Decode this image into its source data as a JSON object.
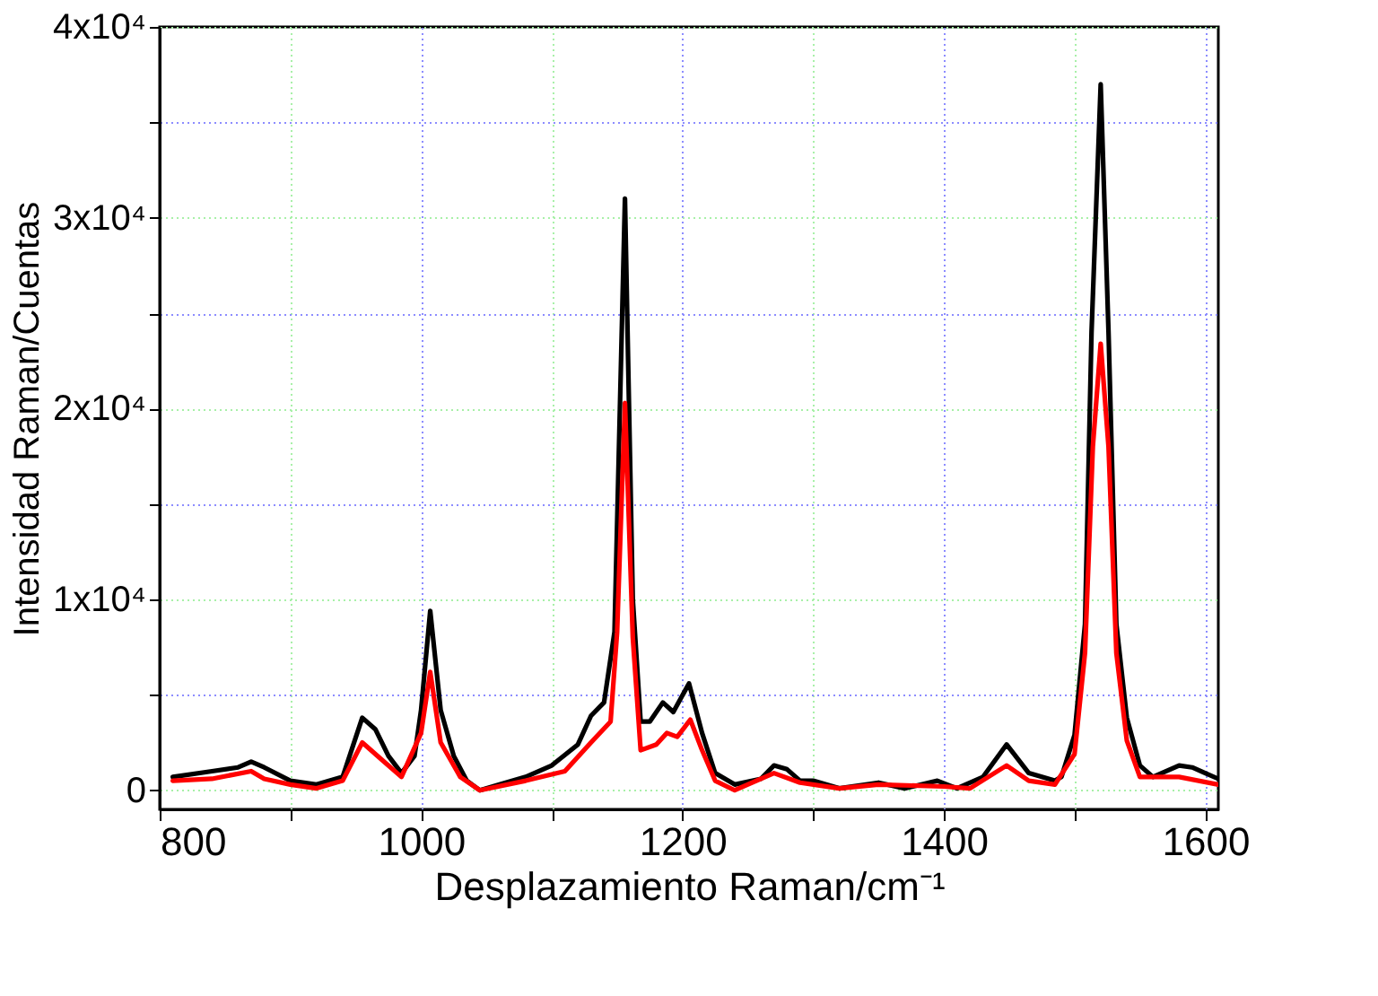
{
  "chart_data": {
    "type": "line",
    "xlabel": "Desplazamiento Raman/cm⁻¹",
    "ylabel": "Intensidad Raman/Cuentas",
    "xlim": [
      800,
      1610
    ],
    "ylim": [
      -1000,
      40000
    ],
    "xticks": [
      800,
      {
        "value": 900,
        "label": null
      },
      1000,
      {
        "value": 1100,
        "label": null
      },
      1200,
      {
        "value": 1300,
        "label": null
      },
      1400,
      {
        "value": 1500,
        "label": null
      },
      1600
    ],
    "yticks": [
      0,
      {
        "value": 5000,
        "label": null
      },
      {
        "value": 10000,
        "label": "1x10⁴"
      },
      {
        "value": 15000,
        "label": null
      },
      {
        "value": 20000,
        "label": "2x10⁴"
      },
      {
        "value": 25000,
        "label": null
      },
      {
        "value": 30000,
        "label": "3x10⁴"
      },
      {
        "value": 35000,
        "label": null
      },
      {
        "value": 40000,
        "label": "4x10⁴"
      }
    ],
    "grid": true,
    "line_style": "solid",
    "marker": "none",
    "series": [
      {
        "color": "#000000",
        "x": [
          810,
          840,
          860,
          870,
          880,
          900,
          920,
          940,
          955,
          965,
          975,
          985,
          995,
          1000,
          1007,
          1015,
          1025,
          1035,
          1045,
          1060,
          1080,
          1100,
          1120,
          1130,
          1140,
          1148,
          1156,
          1162,
          1168,
          1175,
          1185,
          1193,
          1205,
          1215,
          1225,
          1240,
          1260,
          1270,
          1280,
          1290,
          1300,
          1320,
          1350,
          1370,
          1395,
          1410,
          1430,
          1448,
          1465,
          1485,
          1490,
          1500,
          1508,
          1513,
          1520,
          1526,
          1532,
          1540,
          1550,
          1560,
          1580,
          1590,
          1600,
          1610
        ],
        "values": [
          700,
          1000,
          1200,
          1500,
          1200,
          500,
          300,
          700,
          3800,
          3200,
          1800,
          900,
          1800,
          4200,
          9400,
          4200,
          1800,
          500,
          0,
          300,
          700,
          1300,
          2400,
          3900,
          4600,
          8300,
          31000,
          10000,
          3600,
          3600,
          4600,
          4100,
          5600,
          3000,
          900,
          300,
          600,
          1300,
          1100,
          500,
          500,
          100,
          400,
          100,
          500,
          100,
          700,
          2400,
          900,
          500,
          700,
          2900,
          8700,
          24000,
          37000,
          24000,
          8700,
          3800,
          1300,
          700,
          1300,
          1200,
          900,
          600
        ]
      },
      {
        "color": "#ff0000",
        "x": [
          810,
          840,
          870,
          880,
          900,
          920,
          940,
          955,
          970,
          985,
          1000,
          1007,
          1015,
          1030,
          1045,
          1080,
          1110,
          1130,
          1145,
          1150,
          1156,
          1162,
          1168,
          1180,
          1188,
          1196,
          1206,
          1215,
          1225,
          1240,
          1270,
          1290,
          1320,
          1350,
          1400,
          1420,
          1448,
          1465,
          1485,
          1500,
          1508,
          1514,
          1520,
          1526,
          1532,
          1540,
          1550,
          1580,
          1610
        ],
        "values": [
          500,
          600,
          1000,
          600,
          300,
          100,
          500,
          2500,
          1600,
          700,
          3000,
          6200,
          2500,
          700,
          0,
          500,
          1000,
          2500,
          3600,
          8300,
          20300,
          8000,
          2100,
          2400,
          3000,
          2800,
          3700,
          2100,
          500,
          0,
          900,
          400,
          100,
          300,
          200,
          100,
          1300,
          500,
          300,
          1900,
          7200,
          18000,
          23400,
          18000,
          7200,
          2600,
          700,
          700,
          300
        ]
      }
    ]
  }
}
